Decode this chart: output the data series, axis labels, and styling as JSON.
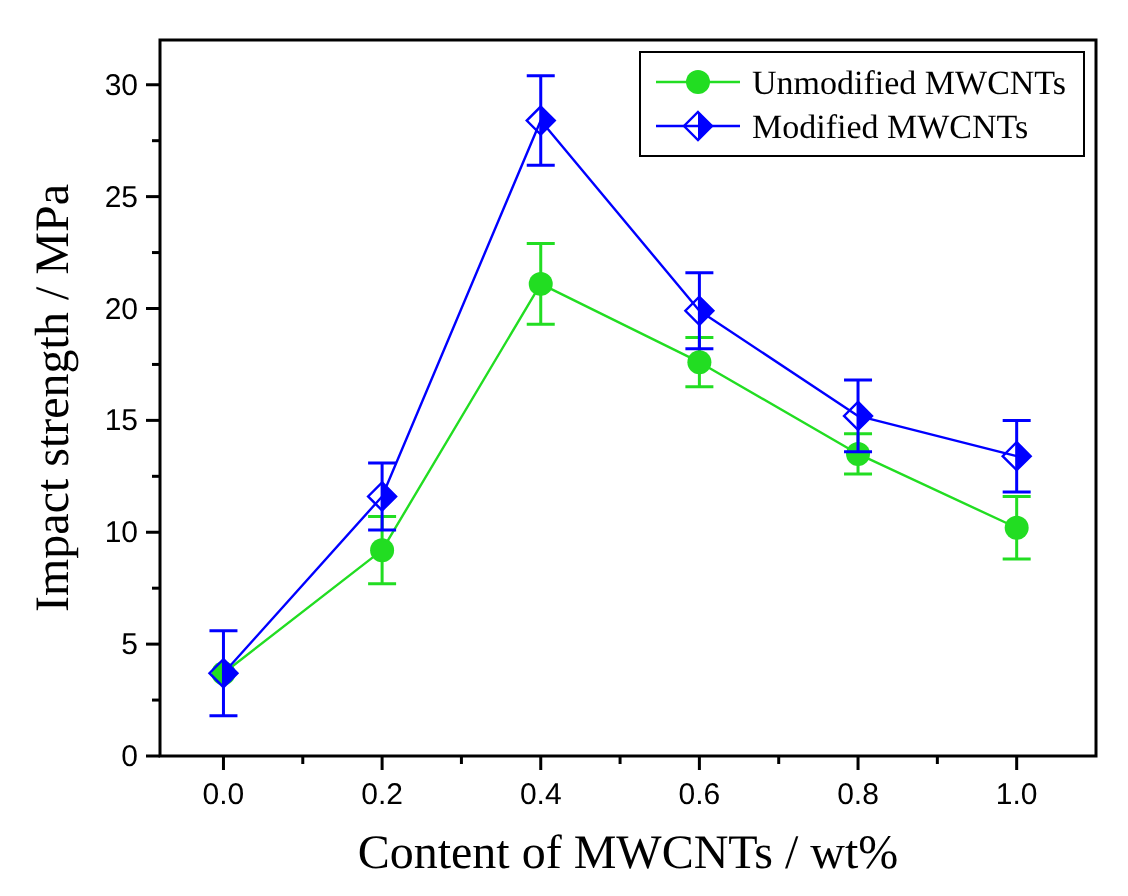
{
  "chart_data": {
    "type": "line",
    "xlabel": "Content of MWCNTs / wt%",
    "ylabel": "Impact strength / MPa",
    "x": [
      0,
      0.2,
      0.4,
      0.6,
      0.8,
      1.0
    ],
    "xlim": [
      -0.08,
      1.1
    ],
    "ylim": [
      0,
      32
    ],
    "xticks": [
      {
        "value": 0,
        "label": "0.0"
      },
      {
        "value": 0.1,
        "label": null
      },
      {
        "value": 0.2,
        "label": "0.2"
      },
      {
        "value": 0.3,
        "label": null
      },
      {
        "value": 0.4,
        "label": "0.4"
      },
      {
        "value": 0.5,
        "label": null
      },
      {
        "value": 0.6,
        "label": "0.6"
      },
      {
        "value": 0.7,
        "label": null
      },
      {
        "value": 0.8,
        "label": "0.8"
      },
      {
        "value": 0.9,
        "label": null
      },
      {
        "value": 1.0,
        "label": "1.0"
      }
    ],
    "yticks": [
      0,
      {
        "value": 2.5,
        "label": null
      },
      5,
      {
        "value": 7.5,
        "label": null
      },
      10,
      {
        "value": 12.5,
        "label": null
      },
      15,
      {
        "value": 17.5,
        "label": null
      },
      20,
      {
        "value": 22.5,
        "label": null
      },
      25,
      {
        "value": 27.5,
        "label": null
      },
      30
    ],
    "legend": "top right",
    "grid": false,
    "series": [
      {
        "name": "Unmodified MWCNTs",
        "color": "#22dd22",
        "marker": "circle",
        "values": [
          3.7,
          9.2,
          21.1,
          17.6,
          13.5,
          10.2
        ],
        "errors": [
          null,
          1.5,
          1.8,
          1.1,
          0.9,
          1.4
        ]
      },
      {
        "name": "Modified MWCNTs",
        "color": "#0000ff",
        "marker": "diamond",
        "values": [
          3.7,
          11.6,
          28.4,
          19.9,
          15.2,
          13.4
        ],
        "errors": [
          1.9,
          1.5,
          2.0,
          1.7,
          1.6,
          1.6
        ]
      }
    ]
  }
}
